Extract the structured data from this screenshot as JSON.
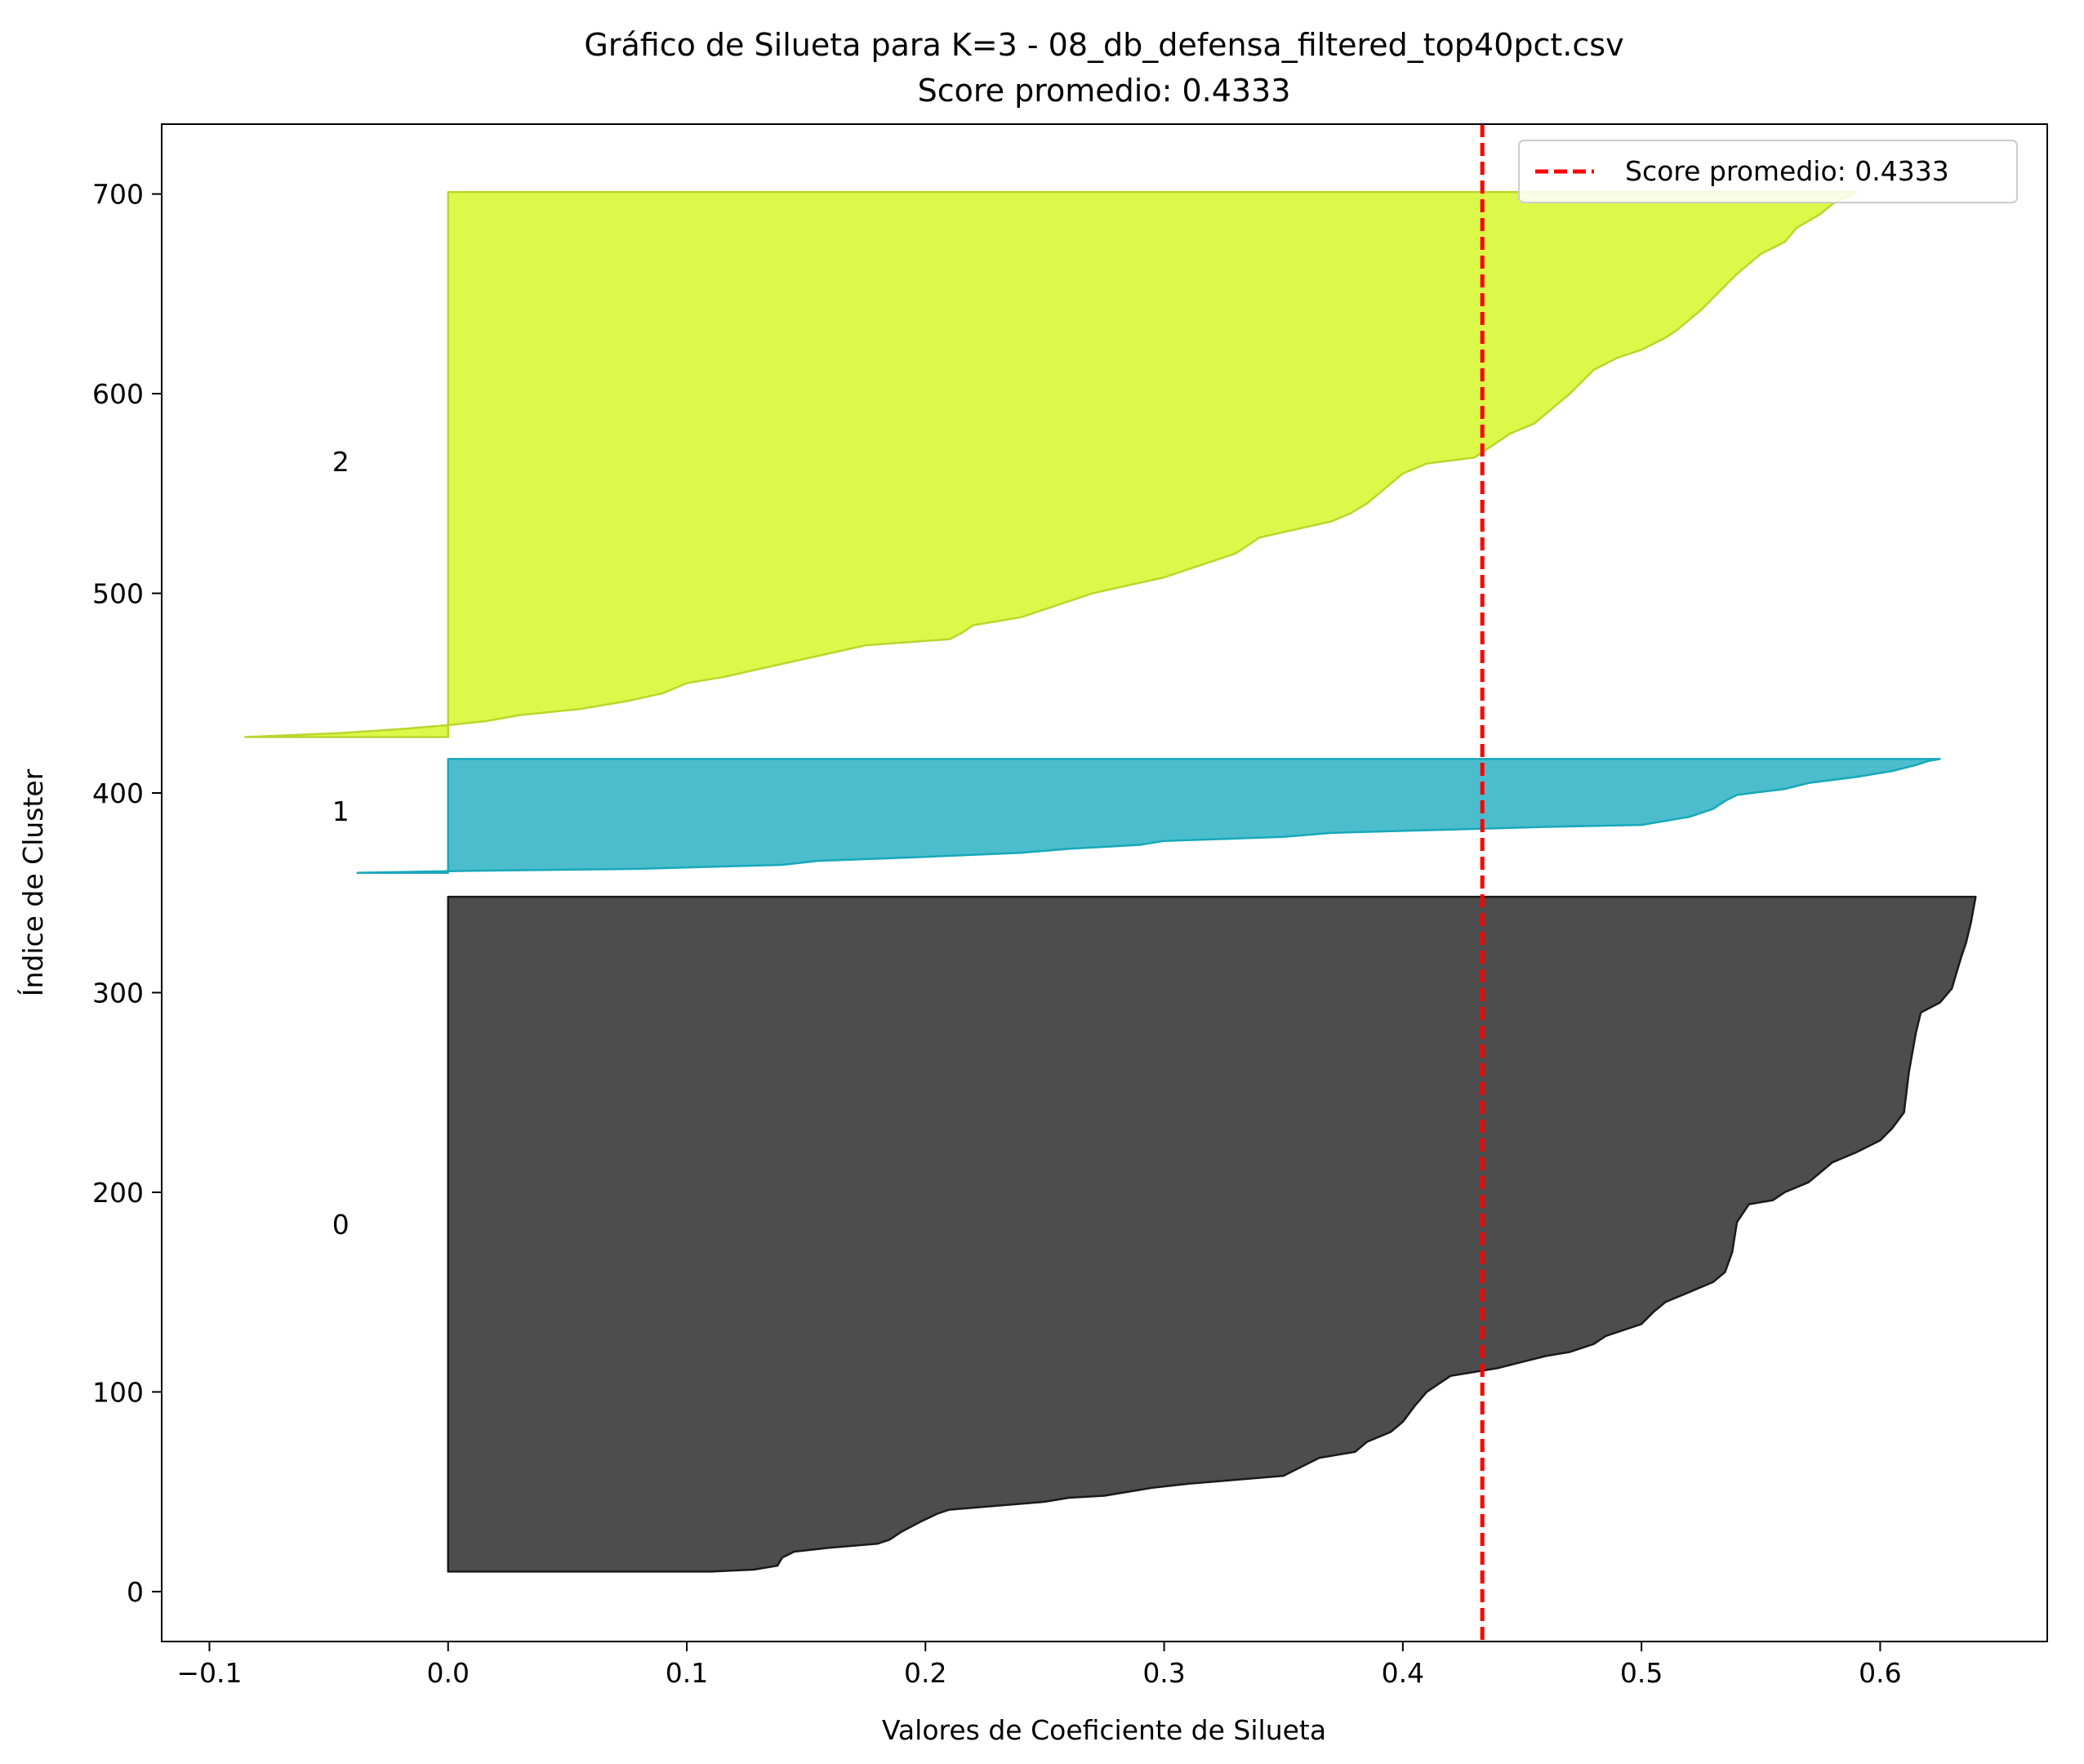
{
  "chart_data": {
    "type": "area",
    "title": "Gráfico de Silueta para K=3 - 08_db_defensa_filtered_top40pct.csv",
    "subtitle": "Score promedio: 0.4333",
    "xlabel": "Valores de Coeficiente de Silueta",
    "ylabel": "Índice de Cluster",
    "xlim": [
      -0.12,
      0.67
    ],
    "ylim": [
      -25,
      735
    ],
    "xticks": [
      -0.1,
      0.0,
      0.1,
      0.2,
      0.3,
      0.4,
      0.5,
      0.6
    ],
    "xtick_labels": [
      "−0.1",
      "0.0",
      "0.1",
      "0.2",
      "0.3",
      "0.4",
      "0.5",
      "0.6"
    ],
    "yticks": [
      0,
      100,
      200,
      300,
      400,
      500,
      600,
      700
    ],
    "ytick_labels": [
      "0",
      "100",
      "200",
      "300",
      "400",
      "500",
      "600",
      "700"
    ],
    "grid": false,
    "legend": {
      "placement": "upper-right",
      "label": "Score promedio: 0.4333"
    },
    "average_line": {
      "value": 0.4333,
      "color": "#ff0000",
      "style": "dashed"
    },
    "clusters": [
      {
        "label": "0",
        "label_position": [
          -0.045,
          184
        ],
        "color": "#4d4d4d",
        "edge_color": "#1a1a1a",
        "y_start": 10,
        "y_end": 348,
        "profile": [
          [
            10,
            0.11
          ],
          [
            11,
            0.128
          ],
          [
            13,
            0.138
          ],
          [
            17,
            0.14
          ],
          [
            20,
            0.145
          ],
          [
            22,
            0.16
          ],
          [
            24,
            0.18
          ],
          [
            26,
            0.185
          ],
          [
            30,
            0.19
          ],
          [
            35,
            0.198
          ],
          [
            39,
            0.205
          ],
          [
            41,
            0.21
          ],
          [
            43,
            0.23
          ],
          [
            45,
            0.25
          ],
          [
            47,
            0.26
          ],
          [
            48,
            0.275
          ],
          [
            50,
            0.285
          ],
          [
            52,
            0.295
          ],
          [
            54,
            0.31
          ],
          [
            56,
            0.33
          ],
          [
            58,
            0.35
          ],
          [
            61,
            0.355
          ],
          [
            67,
            0.365
          ],
          [
            70,
            0.38
          ],
          [
            75,
            0.385
          ],
          [
            80,
            0.395
          ],
          [
            85,
            0.4
          ],
          [
            93,
            0.405
          ],
          [
            100,
            0.41
          ],
          [
            104,
            0.415
          ],
          [
            108,
            0.42
          ],
          [
            112,
            0.44
          ],
          [
            115,
            0.45
          ],
          [
            118,
            0.46
          ],
          [
            120,
            0.47
          ],
          [
            124,
            0.48
          ],
          [
            128,
            0.485
          ],
          [
            134,
            0.5
          ],
          [
            140,
            0.505
          ],
          [
            145,
            0.51
          ],
          [
            150,
            0.52
          ],
          [
            155,
            0.53
          ],
          [
            160,
            0.535
          ],
          [
            170,
            0.538
          ],
          [
            185,
            0.54
          ],
          [
            194,
            0.545
          ],
          [
            196,
            0.555
          ],
          [
            200,
            0.56
          ],
          [
            205,
            0.57
          ],
          [
            210,
            0.575
          ],
          [
            215,
            0.58
          ],
          [
            220,
            0.59
          ],
          [
            226,
            0.6
          ],
          [
            232,
            0.605
          ],
          [
            240,
            0.61
          ],
          [
            260,
            0.612
          ],
          [
            280,
            0.615
          ],
          [
            290,
            0.617
          ],
          [
            295,
            0.625
          ],
          [
            302,
            0.63
          ],
          [
            310,
            0.632
          ],
          [
            318,
            0.634
          ],
          [
            325,
            0.636
          ],
          [
            335,
            0.638
          ],
          [
            348,
            0.64
          ]
        ]
      },
      {
        "label": "1",
        "label_position": [
          -0.045,
          391
        ],
        "color": "#4bbdcd",
        "edge_color": "#17a8ba",
        "y_start": 360,
        "y_end": 417,
        "profile": [
          [
            360,
            -0.038
          ],
          [
            361,
            0.01
          ],
          [
            362,
            0.08
          ],
          [
            363,
            0.11
          ],
          [
            364,
            0.14
          ],
          [
            366,
            0.155
          ],
          [
            368,
            0.2
          ],
          [
            370,
            0.24
          ],
          [
            372,
            0.26
          ],
          [
            374,
            0.29
          ],
          [
            376,
            0.3
          ],
          [
            378,
            0.35
          ],
          [
            380,
            0.37
          ],
          [
            381,
            0.4
          ],
          [
            382,
            0.43
          ],
          [
            383,
            0.46
          ],
          [
            384,
            0.5
          ],
          [
            386,
            0.51
          ],
          [
            388,
            0.52
          ],
          [
            392,
            0.53
          ],
          [
            396,
            0.535
          ],
          [
            399,
            0.54
          ],
          [
            402,
            0.56
          ],
          [
            405,
            0.57
          ],
          [
            408,
            0.59
          ],
          [
            411,
            0.605
          ],
          [
            414,
            0.615
          ],
          [
            416,
            0.62
          ],
          [
            417,
            0.625
          ]
        ]
      },
      {
        "label": "2",
        "label_position": [
          -0.045,
          566
        ],
        "color": "#dcf94a",
        "edge_color": "#bcd52c",
        "y_start": 428,
        "y_end": 701,
        "profile": [
          [
            428,
            -0.085
          ],
          [
            430,
            -0.045
          ],
          [
            432,
            -0.02
          ],
          [
            434,
            0.0
          ],
          [
            436,
            0.016
          ],
          [
            439,
            0.03
          ],
          [
            442,
            0.055
          ],
          [
            446,
            0.075
          ],
          [
            450,
            0.09
          ],
          [
            455,
            0.1
          ],
          [
            458,
            0.115
          ],
          [
            462,
            0.13
          ],
          [
            466,
            0.145
          ],
          [
            470,
            0.16
          ],
          [
            474,
            0.175
          ],
          [
            477,
            0.21
          ],
          [
            480,
            0.215
          ],
          [
            484,
            0.22
          ],
          [
            488,
            0.24
          ],
          [
            492,
            0.25
          ],
          [
            496,
            0.26
          ],
          [
            500,
            0.27
          ],
          [
            504,
            0.285
          ],
          [
            508,
            0.3
          ],
          [
            512,
            0.31
          ],
          [
            516,
            0.32
          ],
          [
            520,
            0.33
          ],
          [
            524,
            0.335
          ],
          [
            528,
            0.34
          ],
          [
            532,
            0.355
          ],
          [
            536,
            0.37
          ],
          [
            540,
            0.378
          ],
          [
            545,
            0.385
          ],
          [
            550,
            0.39
          ],
          [
            555,
            0.395
          ],
          [
            560,
            0.4
          ],
          [
            565,
            0.41
          ],
          [
            568,
            0.43
          ],
          [
            572,
            0.435
          ],
          [
            576,
            0.44
          ],
          [
            580,
            0.445
          ],
          [
            585,
            0.455
          ],
          [
            590,
            0.46
          ],
          [
            595,
            0.465
          ],
          [
            600,
            0.47
          ],
          [
            606,
            0.475
          ],
          [
            612,
            0.48
          ],
          [
            618,
            0.49
          ],
          [
            622,
            0.5
          ],
          [
            628,
            0.51
          ],
          [
            632,
            0.515
          ],
          [
            637,
            0.52
          ],
          [
            642,
            0.525
          ],
          [
            648,
            0.53
          ],
          [
            654,
            0.535
          ],
          [
            660,
            0.54
          ],
          [
            665,
            0.545
          ],
          [
            670,
            0.55
          ],
          [
            676,
            0.56
          ],
          [
            683,
            0.565
          ],
          [
            690,
            0.575
          ],
          [
            695,
            0.58
          ],
          [
            701,
            0.59
          ]
        ]
      }
    ]
  }
}
